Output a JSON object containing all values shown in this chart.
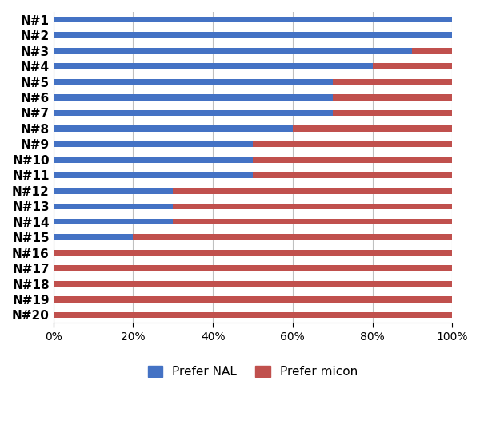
{
  "participants": [
    "N#1",
    "N#2",
    "N#3",
    "N#4",
    "N#5",
    "N#6",
    "N#7",
    "N#8",
    "N#9",
    "N#10",
    "N#11",
    "N#12",
    "N#13",
    "N#14",
    "N#15",
    "N#16",
    "N#17",
    "N#18",
    "N#19",
    "N#20"
  ],
  "nal_values": [
    100,
    100,
    90,
    80,
    70,
    70,
    70,
    60,
    50,
    50,
    50,
    30,
    30,
    30,
    20,
    0,
    0,
    0,
    0,
    0
  ],
  "micon_values": [
    0,
    0,
    10,
    20,
    30,
    30,
    30,
    40,
    50,
    50,
    50,
    70,
    70,
    70,
    80,
    100,
    100,
    100,
    100,
    100
  ],
  "nal_color": "#4472C4",
  "micon_color": "#C0504D",
  "legend_nal": "Prefer NAL",
  "legend_micon": "Prefer micon",
  "xlabel_ticks": [
    "0%",
    "20%",
    "40%",
    "60%",
    "80%",
    "100%"
  ],
  "xlabel_vals": [
    0,
    20,
    40,
    60,
    80,
    100
  ],
  "background_color": "#ffffff",
  "bar_height": 0.38,
  "grid_color": "#c0c0c0",
  "font_size_labels": 11,
  "font_size_ticks": 10,
  "font_size_legend": 11
}
